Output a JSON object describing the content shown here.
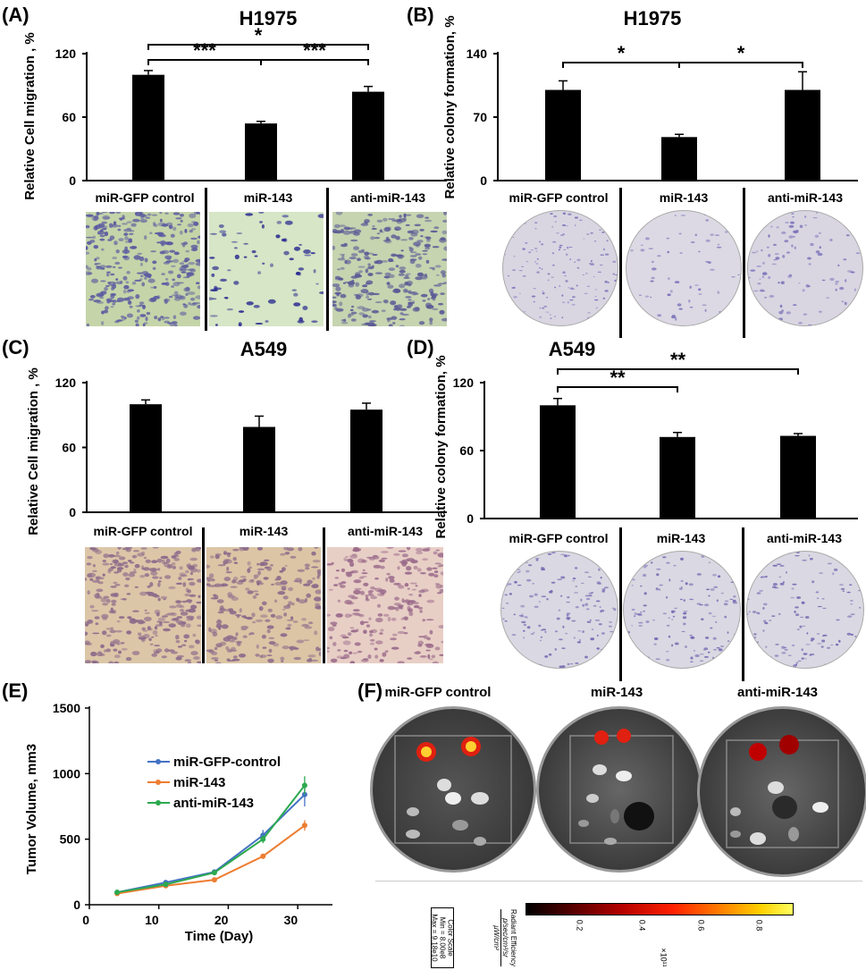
{
  "panels": {
    "A": {
      "letter": "(A)",
      "title": "H1975",
      "ylabel": "Relative Cell migration , %",
      "yticks": [
        "0",
        "60",
        "120"
      ],
      "conditions": [
        "miR-GFP control",
        "miR-143",
        "anti-miR-143"
      ],
      "significance": [
        "***",
        "***",
        "*"
      ]
    },
    "B": {
      "letter": "(B)",
      "title": "H1975",
      "ylabel": "Relative colony formation, %",
      "yticks": [
        "0",
        "70",
        "140"
      ],
      "conditions": [
        "miR-GFP control",
        "miR-143",
        "anti-miR-143"
      ],
      "significance": [
        "*",
        "*"
      ]
    },
    "C": {
      "letter": "(C)",
      "title": "A549",
      "ylabel": "Relative Cell migration , %",
      "yticks": [
        "0",
        "60",
        "120"
      ],
      "conditions": [
        "miR-GFP control",
        "miR-143",
        "anti-miR-143"
      ]
    },
    "D": {
      "letter": "(D)",
      "title": "A549",
      "ylabel": "Relative colony formation, %",
      "yticks": [
        "0",
        "60",
        "120"
      ],
      "conditions": [
        "miR-GFP control",
        "miR-143",
        "anti-miR-143"
      ],
      "significance": [
        "**",
        "**"
      ]
    },
    "E": {
      "letter": "(E)",
      "ylabel": "Tumor Volume,  mm3",
      "xlabel": "Time (Day)",
      "xticks": [
        "0",
        "10",
        "20",
        "30"
      ],
      "yticks": [
        "0",
        "500",
        "1000",
        "1500"
      ]
    },
    "F": {
      "letter": "(F)",
      "conditions": [
        "miR-GFP control",
        "miR-143",
        "anti-miR-143"
      ],
      "color_scale": {
        "box_lines": [
          "Color Scale",
          "Min = 8.00e8",
          "Max = 9.18e10"
        ],
        "label_line1": "Radiant Efficiency",
        "label_line2": "p/sec/cm²/sr",
        "label_line3": "μW/cm²",
        "ticks": [
          "0.2",
          "0.4",
          "0.6",
          "0.8"
        ],
        "multiplier": "×10¹¹"
      }
    }
  },
  "colors": {
    "bar": "#000000",
    "series_blue": "#4472c4",
    "series_orange": "#ed7d31",
    "series_green": "#2ca94f",
    "migration_h1975_bg": "#c8d9b0",
    "migration_a549_bg": "#d8c0a2",
    "colony_dish": "#d6d3df"
  },
  "chart_data": [
    {
      "id": "A",
      "type": "bar",
      "title": "H1975",
      "ylabel": "Relative Cell migration , %",
      "categories": [
        "miR-GFP control",
        "miR-143",
        "anti-miR-143"
      ],
      "values": [
        100,
        54,
        84
      ],
      "errors": [
        4,
        2,
        5
      ],
      "ylim": [
        0,
        120
      ],
      "yticks": [
        0,
        60,
        120
      ],
      "significance": [
        {
          "from": 0,
          "to": 1,
          "label": "***"
        },
        {
          "from": 1,
          "to": 2,
          "label": "***"
        },
        {
          "from": 0,
          "to": 2,
          "label": "*"
        }
      ]
    },
    {
      "id": "B",
      "type": "bar",
      "title": "H1975",
      "ylabel": "Relative colony formation, %",
      "categories": [
        "miR-GFP control",
        "miR-143",
        "anti-miR-143"
      ],
      "values": [
        100,
        48,
        100
      ],
      "errors": [
        10,
        3,
        20
      ],
      "ylim": [
        0,
        140
      ],
      "yticks": [
        0,
        70,
        140
      ],
      "significance": [
        {
          "from": 0,
          "to": 1,
          "label": "*"
        },
        {
          "from": 1,
          "to": 2,
          "label": "*"
        }
      ]
    },
    {
      "id": "C",
      "type": "bar",
      "title": "A549",
      "ylabel": "Relative Cell migration , %",
      "categories": [
        "miR-GFP control",
        "miR-143",
        "anti-miR-143"
      ],
      "values": [
        100,
        79,
        95
      ],
      "errors": [
        4,
        10,
        6
      ],
      "ylim": [
        0,
        120
      ],
      "yticks": [
        0,
        60,
        120
      ],
      "significance": []
    },
    {
      "id": "D",
      "type": "bar",
      "title": "A549",
      "ylabel": "Relative colony formation, %",
      "categories": [
        "miR-GFP control",
        "miR-143",
        "anti-miR-143"
      ],
      "values": [
        100,
        72,
        73
      ],
      "errors": [
        6,
        4,
        2
      ],
      "ylim": [
        0,
        120
      ],
      "yticks": [
        0,
        60,
        120
      ],
      "significance": [
        {
          "from": 0,
          "to": 1,
          "label": "**"
        },
        {
          "from": 0,
          "to": 2,
          "label": "**"
        }
      ]
    },
    {
      "id": "E",
      "type": "line",
      "xlabel": "Time (Day)",
      "ylabel": "Tumor Volume,  mm3",
      "x": [
        4,
        11,
        18,
        25,
        31
      ],
      "xlim": [
        0,
        35
      ],
      "ylim": [
        0,
        1500
      ],
      "xticks": [
        0,
        10,
        20,
        30
      ],
      "yticks": [
        0,
        500,
        1000,
        1500
      ],
      "legend": "center-left",
      "series": [
        {
          "name": "miR-GFP-control",
          "color": "#4472c4",
          "values": [
            95,
            170,
            250,
            530,
            840
          ],
          "errors": [
            10,
            15,
            20,
            40,
            90
          ]
        },
        {
          "name": "miR-143",
          "color": "#ed7d31",
          "values": [
            85,
            145,
            190,
            370,
            605
          ],
          "errors": [
            8,
            10,
            15,
            20,
            40
          ]
        },
        {
          "name": "anti-miR-143",
          "color": "#2ca94f",
          "values": [
            95,
            155,
            245,
            500,
            910
          ],
          "errors": [
            10,
            12,
            15,
            30,
            70
          ]
        }
      ]
    }
  ]
}
